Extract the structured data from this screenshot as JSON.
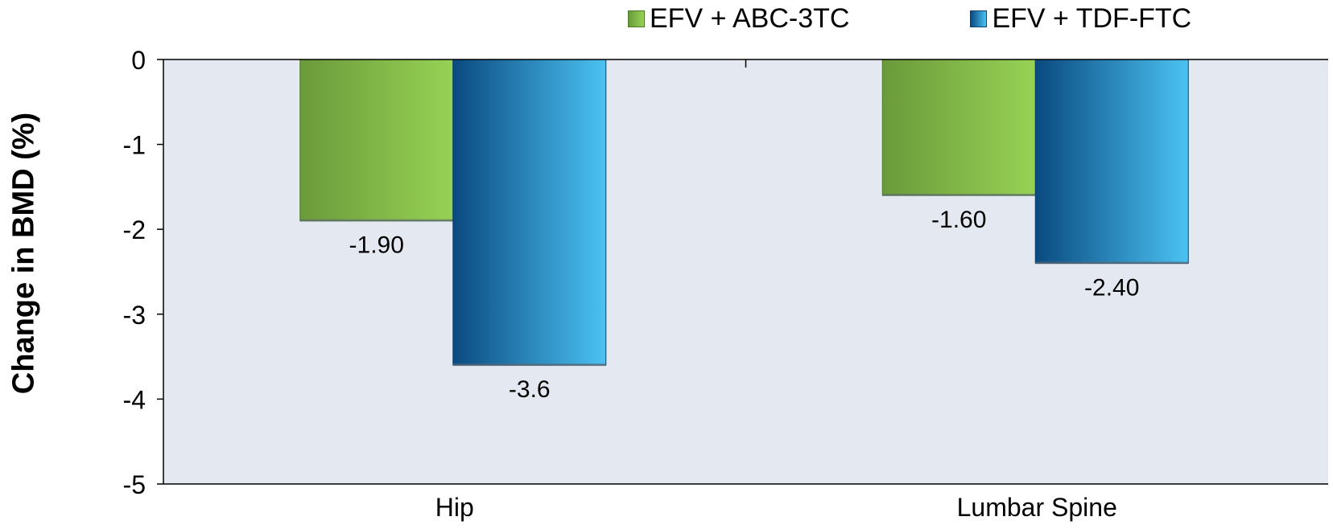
{
  "chart_data": {
    "type": "bar",
    "categories": [
      "Hip",
      "Lumbar Spine"
    ],
    "series": [
      {
        "name": "EFV + ABC-3TC",
        "values": [
          -1.9,
          -1.6
        ],
        "labels": [
          "-1.90",
          "-1.60"
        ],
        "color": "#7fb447"
      },
      {
        "name": "EFV + TDF-FTC",
        "values": [
          -3.6,
          -2.4
        ],
        "labels": [
          "-3.6",
          "-2.40"
        ],
        "color": "#1f82c0"
      }
    ],
    "ylabel": "Change in BMD (%)",
    "xlabel": "",
    "ylim": [
      -5,
      0
    ],
    "yticks": [
      "0",
      "-1",
      "-2",
      "-3",
      "-4",
      "-5"
    ],
    "ytick_values": [
      0,
      -1,
      -2,
      -3,
      -4,
      -5
    ],
    "legend_position": "top",
    "plot_background": "#e4e9f1",
    "grid": false
  }
}
